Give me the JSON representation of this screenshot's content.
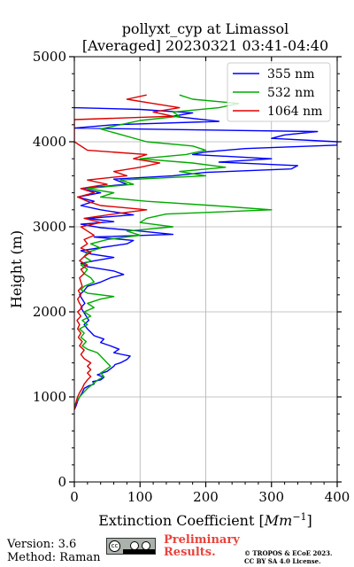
{
  "chart_data": {
    "type": "line",
    "title_line1": "pollyxt_cyp at Limassol",
    "title_line2": "[Averaged] 20230321 03:41-04:40",
    "xlabel": "Extinction Coefficient [",
    "xlabel_unit": "Mm",
    "xlabel_exp": "−1",
    "xlabel_end": "]",
    "ylabel": "Height (m)",
    "xlim": [
      0,
      400
    ],
    "ylim": [
      0,
      5000
    ],
    "xticks": [
      0,
      100,
      200,
      300,
      400
    ],
    "yticks": [
      0,
      1000,
      2000,
      3000,
      4000,
      5000
    ],
    "grid": true,
    "legend_position": "top-right",
    "series": [
      {
        "name": "355 nm",
        "color": "#0000ff",
        "points": [
          [
            0,
            850
          ],
          [
            3,
            900
          ],
          [
            5,
            950
          ],
          [
            8,
            1000
          ],
          [
            12,
            1050
          ],
          [
            15,
            1100
          ],
          [
            22,
            1130
          ],
          [
            30,
            1150
          ],
          [
            28,
            1180
          ],
          [
            40,
            1200
          ],
          [
            45,
            1230
          ],
          [
            35,
            1260
          ],
          [
            50,
            1300
          ],
          [
            55,
            1330
          ],
          [
            60,
            1360
          ],
          [
            62,
            1380
          ],
          [
            70,
            1400
          ],
          [
            80,
            1440
          ],
          [
            85,
            1480
          ],
          [
            72,
            1500
          ],
          [
            60,
            1520
          ],
          [
            68,
            1560
          ],
          [
            55,
            1600
          ],
          [
            40,
            1640
          ],
          [
            45,
            1680
          ],
          [
            30,
            1720
          ],
          [
            25,
            1760
          ],
          [
            20,
            1800
          ],
          [
            15,
            1850
          ],
          [
            22,
            1900
          ],
          [
            18,
            1950
          ],
          [
            14,
            2000
          ],
          [
            10,
            2050
          ],
          [
            16,
            2100
          ],
          [
            12,
            2150
          ],
          [
            8,
            2200
          ],
          [
            15,
            2250
          ],
          [
            20,
            2300
          ],
          [
            40,
            2350
          ],
          [
            55,
            2400
          ],
          [
            75,
            2440
          ],
          [
            60,
            2480
          ],
          [
            20,
            2530
          ],
          [
            10,
            2570
          ],
          [
            30,
            2600
          ],
          [
            60,
            2640
          ],
          [
            25,
            2680
          ],
          [
            10,
            2720
          ],
          [
            45,
            2760
          ],
          [
            80,
            2800
          ],
          [
            90,
            2840
          ],
          [
            30,
            2880
          ],
          [
            150,
            2910
          ],
          [
            100,
            2950
          ],
          [
            40,
            2990
          ],
          [
            10,
            3030
          ],
          [
            60,
            3060
          ],
          [
            20,
            3100
          ],
          [
            90,
            3140
          ],
          [
            40,
            3200
          ],
          [
            10,
            3250
          ],
          [
            30,
            3300
          ],
          [
            5,
            3350
          ],
          [
            40,
            3400
          ],
          [
            10,
            3450
          ],
          [
            80,
            3500
          ],
          [
            60,
            3560
          ],
          [
            150,
            3600
          ],
          [
            200,
            3640
          ],
          [
            330,
            3680
          ],
          [
            340,
            3720
          ],
          [
            220,
            3760
          ],
          [
            300,
            3800
          ],
          [
            180,
            3850
          ],
          [
            200,
            3880
          ],
          [
            260,
            3920
          ],
          [
            400,
            3960
          ],
          [
            400,
            4000
          ],
          [
            300,
            4040
          ],
          [
            320,
            4080
          ],
          [
            370,
            4120
          ],
          [
            0,
            4160
          ],
          [
            60,
            4200
          ],
          [
            220,
            4240
          ],
          [
            150,
            4300
          ],
          [
            180,
            4340
          ],
          [
            100,
            4380
          ],
          [
            0,
            4400
          ]
        ]
      },
      {
        "name": "532 nm",
        "color": "#00aa00",
        "points": [
          [
            0,
            900
          ],
          [
            4,
            950
          ],
          [
            8,
            1000
          ],
          [
            14,
            1050
          ],
          [
            20,
            1100
          ],
          [
            28,
            1150
          ],
          [
            36,
            1200
          ],
          [
            45,
            1240
          ],
          [
            40,
            1280
          ],
          [
            48,
            1320
          ],
          [
            55,
            1360
          ],
          [
            50,
            1400
          ],
          [
            45,
            1440
          ],
          [
            40,
            1480
          ],
          [
            35,
            1520
          ],
          [
            20,
            1560
          ],
          [
            12,
            1600
          ],
          [
            18,
            1650
          ],
          [
            10,
            1700
          ],
          [
            15,
            1750
          ],
          [
            8,
            1800
          ],
          [
            20,
            1850
          ],
          [
            12,
            1900
          ],
          [
            25,
            1950
          ],
          [
            15,
            2000
          ],
          [
            30,
            2050
          ],
          [
            20,
            2100
          ],
          [
            40,
            2150
          ],
          [
            60,
            2180
          ],
          [
            20,
            2220
          ],
          [
            10,
            2260
          ],
          [
            15,
            2300
          ],
          [
            30,
            2350
          ],
          [
            25,
            2400
          ],
          [
            15,
            2450
          ],
          [
            20,
            2500
          ],
          [
            10,
            2550
          ],
          [
            25,
            2600
          ],
          [
            15,
            2650
          ],
          [
            20,
            2700
          ],
          [
            40,
            2750
          ],
          [
            25,
            2800
          ],
          [
            50,
            2850
          ],
          [
            100,
            2900
          ],
          [
            80,
            2950
          ],
          [
            150,
            3000
          ],
          [
            100,
            3050
          ],
          [
            110,
            3100
          ],
          [
            140,
            3150
          ],
          [
            300,
            3200
          ],
          [
            210,
            3250
          ],
          [
            110,
            3300
          ],
          [
            40,
            3350
          ],
          [
            60,
            3400
          ],
          [
            20,
            3450
          ],
          [
            90,
            3500
          ],
          [
            70,
            3550
          ],
          [
            200,
            3600
          ],
          [
            160,
            3650
          ],
          [
            230,
            3700
          ],
          [
            180,
            3750
          ],
          [
            100,
            3800
          ],
          [
            170,
            3850
          ],
          [
            200,
            3900
          ],
          [
            180,
            3950
          ],
          [
            110,
            4000
          ],
          [
            40,
            4150
          ],
          [
            100,
            4250
          ],
          [
            160,
            4300
          ],
          [
            150,
            4350
          ],
          [
            220,
            4400
          ],
          [
            250,
            4450
          ],
          [
            180,
            4500
          ],
          [
            160,
            4550
          ]
        ]
      },
      {
        "name": "1064 nm",
        "color": "#dd0000",
        "points": [
          [
            0,
            850
          ],
          [
            2,
            900
          ],
          [
            3,
            950
          ],
          [
            5,
            1000
          ],
          [
            8,
            1050
          ],
          [
            12,
            1100
          ],
          [
            15,
            1150
          ],
          [
            20,
            1200
          ],
          [
            25,
            1240
          ],
          [
            20,
            1280
          ],
          [
            25,
            1320
          ],
          [
            20,
            1360
          ],
          [
            25,
            1400
          ],
          [
            15,
            1450
          ],
          [
            10,
            1500
          ],
          [
            15,
            1550
          ],
          [
            8,
            1600
          ],
          [
            12,
            1650
          ],
          [
            6,
            1700
          ],
          [
            10,
            1750
          ],
          [
            5,
            1800
          ],
          [
            8,
            1850
          ],
          [
            4,
            1900
          ],
          [
            10,
            1950
          ],
          [
            5,
            2000
          ],
          [
            12,
            2050
          ],
          [
            8,
            2100
          ],
          [
            5,
            2150
          ],
          [
            10,
            2200
          ],
          [
            6,
            2250
          ],
          [
            12,
            2300
          ],
          [
            8,
            2400
          ],
          [
            15,
            2450
          ],
          [
            10,
            2500
          ],
          [
            20,
            2550
          ],
          [
            8,
            2600
          ],
          [
            15,
            2650
          ],
          [
            25,
            2700
          ],
          [
            10,
            2750
          ],
          [
            20,
            2800
          ],
          [
            15,
            2850
          ],
          [
            30,
            2900
          ],
          [
            20,
            2950
          ],
          [
            10,
            3000
          ],
          [
            40,
            3050
          ],
          [
            15,
            3100
          ],
          [
            60,
            3150
          ],
          [
            110,
            3200
          ],
          [
            40,
            3250
          ],
          [
            20,
            3300
          ],
          [
            5,
            3350
          ],
          [
            30,
            3400
          ],
          [
            10,
            3450
          ],
          [
            50,
            3500
          ],
          [
            20,
            3550
          ],
          [
            80,
            3600
          ],
          [
            60,
            3650
          ],
          [
            100,
            3700
          ],
          [
            130,
            3750
          ],
          [
            90,
            3800
          ],
          [
            110,
            3850
          ],
          [
            20,
            3900
          ],
          [
            0,
            4000
          ],
          [
            0,
            4260
          ],
          [
            150,
            4300
          ],
          [
            120,
            4350
          ],
          [
            160,
            4400
          ],
          [
            120,
            4450
          ],
          [
            80,
            4500
          ],
          [
            110,
            4550
          ]
        ]
      }
    ]
  },
  "footer": {
    "version": "Version: 3.6",
    "method": "Method: Raman",
    "preliminary_line1": "Preliminary",
    "preliminary_line2": "Results.",
    "copyright_line1": "© TROPOS & ECoE 2023.",
    "copyright_line2": "CC BY SA 4.0 License.",
    "cc_label": "cc"
  }
}
